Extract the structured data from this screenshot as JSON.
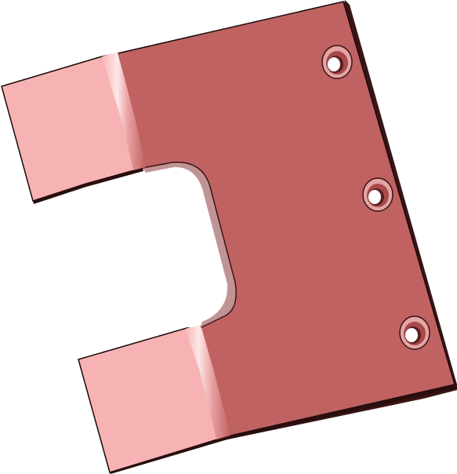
{
  "scene": {
    "object": "bent-sheet-metal-bracket",
    "background_color": "#ffffff",
    "colors": {
      "main_face": "#c06262",
      "tab_face": "#f7b3b3",
      "bend_highlight": "#fde6e6",
      "edge": "#1a0a0a",
      "hole_inner": "#a84a4a",
      "hole_bore": "#7a2c2c",
      "hole_ring": "#e5a5a5"
    },
    "features": {
      "mounting_holes": 3,
      "bent_tabs": 2,
      "cutout": "u-slot"
    }
  }
}
